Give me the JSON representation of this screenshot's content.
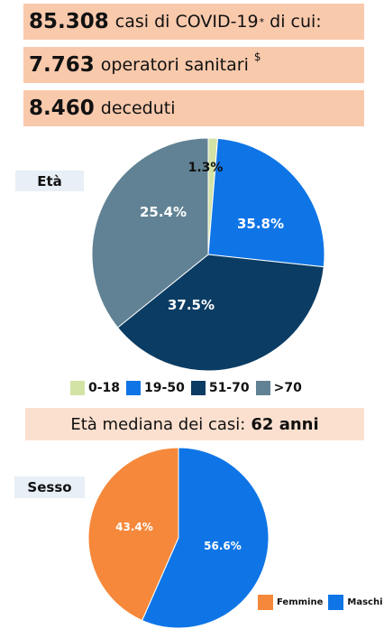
{
  "header": {
    "total_cases": {
      "number": "85.308",
      "text": "casi di COVID-19",
      "sup": "*",
      "suffix": "di cui:"
    },
    "health_workers": {
      "number": "7.763",
      "text": "operatori sanitari",
      "sup": "$"
    },
    "deaths": {
      "number": "8.460",
      "text": "deceduti"
    }
  },
  "median": {
    "text": "Età mediana dei casi:",
    "value": "62 anni"
  },
  "chart_data": [
    {
      "type": "pie",
      "title": "Età",
      "categories": [
        "0-18",
        "19-50",
        "51-70",
        ">70"
      ],
      "values": [
        1.3,
        25.4,
        37.5,
        35.8
      ],
      "labels": [
        "1.3%",
        "25.4%",
        "37.5%",
        "35.8%"
      ],
      "colors": [
        "#d3e3a6",
        "#0f75e6",
        "#0b3c63",
        "#618294"
      ],
      "legend": "bottom"
    },
    {
      "type": "pie",
      "title": "Sesso",
      "categories": [
        "Femmine",
        "Maschi"
      ],
      "values": [
        43.4,
        56.6
      ],
      "labels": [
        "43.4%",
        "56.6%"
      ],
      "colors": [
        "#f5883a",
        "#0f75e6"
      ],
      "legend": "bottom-right"
    }
  ]
}
